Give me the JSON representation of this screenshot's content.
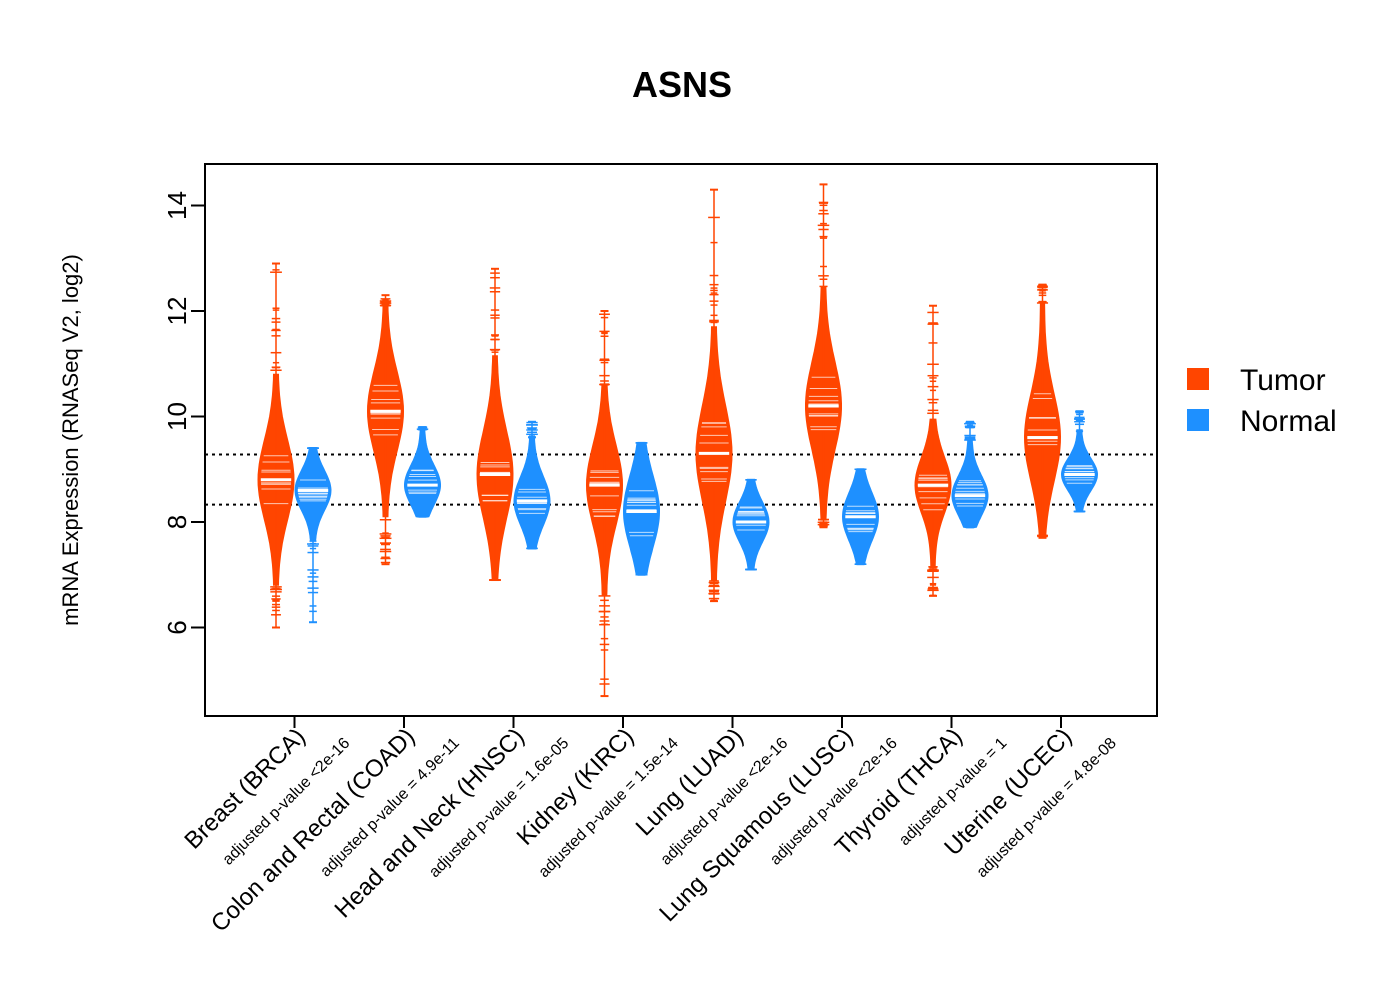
{
  "chart_data": {
    "type": "violin",
    "title": "ASNS",
    "xlabel": "",
    "ylabel": "mRNA Expression (RNASeq V2, log2)",
    "ylim": [
      4.5,
      14.8
    ],
    "yticks": [
      6,
      8,
      10,
      12,
      14
    ],
    "reference_lines": [
      8.33,
      9.28
    ],
    "colors": {
      "Tumor": "#FF4500",
      "Normal": "#1E90FF"
    },
    "legend": [
      {
        "name": "Tumor",
        "color": "#FF4500"
      },
      {
        "name": "Normal",
        "color": "#1E90FF"
      }
    ],
    "groups": [
      {
        "category": "Breast (BRCA)",
        "pvalue_label": "adjusted p-value <2e-16",
        "tumor": {
          "median": 8.8,
          "q1": 8.3,
          "q3": 9.3,
          "min": 6.0,
          "max": 12.9
        },
        "normal": {
          "median": 8.6,
          "q1": 8.4,
          "q3": 8.9,
          "min": 6.1,
          "max": 9.4
        }
      },
      {
        "category": "Colon and Rectal (COAD)",
        "pvalue_label": "adjusted p-value = 4.9e-11",
        "tumor": {
          "median": 10.1,
          "q1": 9.6,
          "q3": 10.6,
          "min": 7.2,
          "max": 12.3
        },
        "normal": {
          "median": 8.7,
          "q1": 8.5,
          "q3": 9.0,
          "min": 8.1,
          "max": 9.8
        }
      },
      {
        "category": "Head and Neck (HNSC)",
        "pvalue_label": "adjusted p-value = 1.6e-05",
        "tumor": {
          "median": 8.9,
          "q1": 8.4,
          "q3": 9.5,
          "min": 6.9,
          "max": 12.8
        },
        "normal": {
          "median": 8.4,
          "q1": 8.1,
          "q3": 8.7,
          "min": 7.5,
          "max": 9.9
        }
      },
      {
        "category": "Kidney (KIRC)",
        "pvalue_label": "adjusted p-value = 1.5e-14",
        "tumor": {
          "median": 8.7,
          "q1": 8.1,
          "q3": 9.1,
          "min": 4.7,
          "max": 12.0
        },
        "normal": {
          "median": 8.2,
          "q1": 7.7,
          "q3": 8.6,
          "min": 7.0,
          "max": 9.5
        }
      },
      {
        "category": "Lung (LUAD)",
        "pvalue_label": "adjusted p-value <2e-16",
        "tumor": {
          "median": 9.3,
          "q1": 8.7,
          "q3": 9.9,
          "min": 6.5,
          "max": 14.3
        },
        "normal": {
          "median": 8.0,
          "q1": 7.8,
          "q3": 8.3,
          "min": 7.1,
          "max": 8.8
        }
      },
      {
        "category": "Lung Squamous (LUSC)",
        "pvalue_label": "adjusted p-value <2e-16",
        "tumor": {
          "median": 10.2,
          "q1": 9.7,
          "q3": 10.8,
          "min": 7.9,
          "max": 14.4
        },
        "normal": {
          "median": 8.1,
          "q1": 7.8,
          "q3": 8.4,
          "min": 7.2,
          "max": 9.0
        }
      },
      {
        "category": "Thyroid (THCA)",
        "pvalue_label": "adjusted p-value = 1",
        "tumor": {
          "median": 8.7,
          "q1": 8.2,
          "q3": 8.9,
          "min": 6.6,
          "max": 12.1
        },
        "normal": {
          "median": 8.5,
          "q1": 8.3,
          "q3": 8.8,
          "min": 7.9,
          "max": 9.9
        }
      },
      {
        "category": "Uterine (UCEC)",
        "pvalue_label": "adjusted p-value = 4.8e-08",
        "tumor": {
          "median": 9.6,
          "q1": 9.4,
          "q3": 10.5,
          "min": 7.7,
          "max": 12.5
        },
        "normal": {
          "median": 8.9,
          "q1": 8.7,
          "q3": 9.1,
          "min": 8.2,
          "max": 10.1
        }
      }
    ]
  }
}
